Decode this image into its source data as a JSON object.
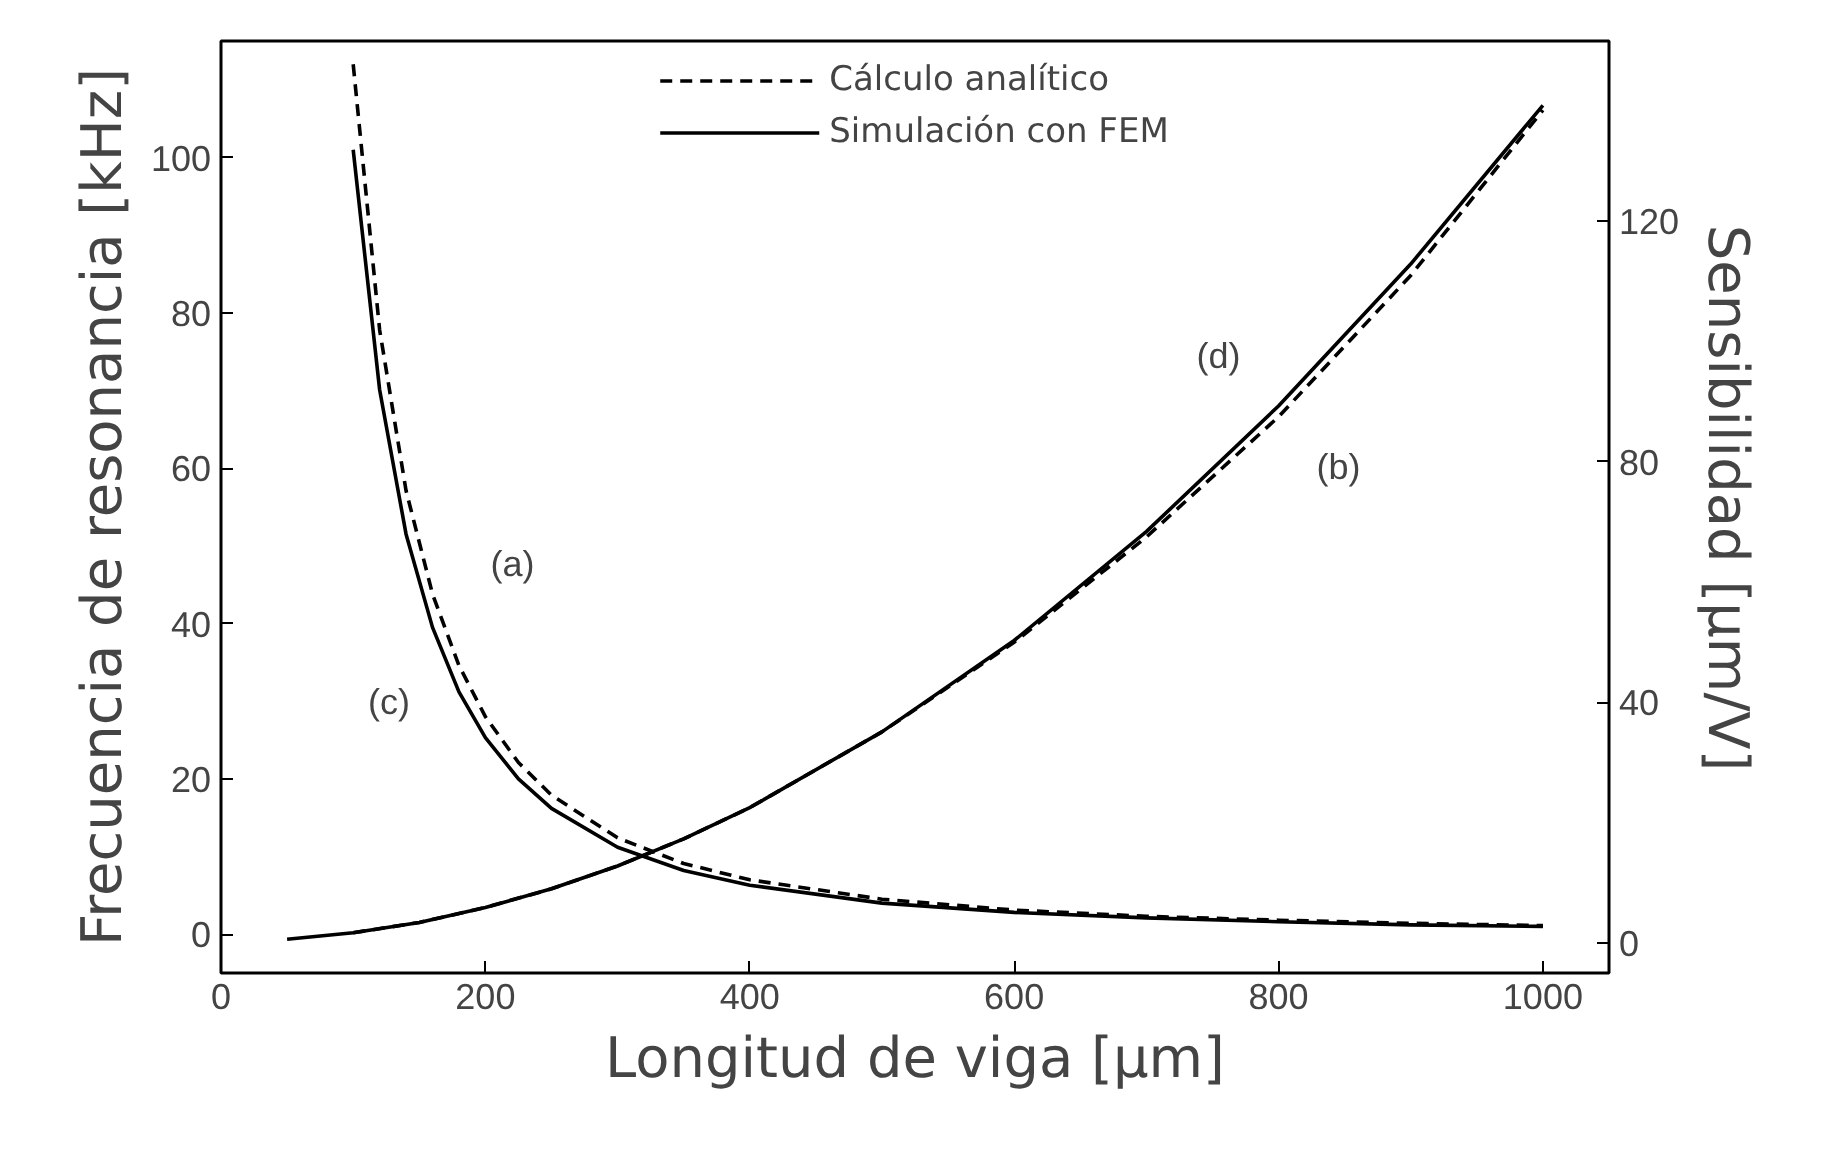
{
  "chart_data": {
    "type": "line",
    "xlabel": "Longitud de viga [μm]",
    "ylabel": "Frecuencia de resonancia [kHz]",
    "y2label": "Sensibilidad  [μm/V]",
    "xlim": [
      0,
      1050
    ],
    "xticks": [
      0,
      200,
      400,
      600,
      800,
      1000
    ],
    "ylim": [
      -5,
      115
    ],
    "yticks": [
      0,
      20,
      40,
      60,
      80,
      100
    ],
    "y2lim": [
      -5,
      150
    ],
    "y2ticks": [
      0,
      40,
      80,
      120
    ],
    "grid": false,
    "legend": "top",
    "series": [
      {
        "name": "Cálculo analítico",
        "color": "#000000",
        "line_style": "dashed",
        "x": [
          100,
          120,
          140,
          160,
          180,
          200,
          225,
          250,
          300,
          350,
          400,
          500,
          600,
          700,
          800,
          900,
          1000
        ],
        "values": [
          112,
          77.8,
          57.1,
          43.8,
          34.6,
          28.0,
          22.1,
          17.9,
          12.4,
          9.1,
          7.0,
          4.5,
          3.1,
          2.3,
          1.8,
          1.4,
          1.1
        ]
      },
      {
        "name": "Simulación con FEM",
        "color": "#000000",
        "line_style": "solid",
        "x": [
          100,
          120,
          140,
          160,
          180,
          200,
          225,
          250,
          300,
          350,
          400,
          500,
          600,
          700,
          800,
          900,
          1000
        ],
        "values": [
          101,
          70.1,
          51.5,
          39.5,
          31.2,
          25.3,
          20.0,
          16.2,
          11.2,
          8.2,
          6.3,
          4.0,
          2.8,
          2.1,
          1.6,
          1.2,
          1.0
        ]
      },
      {
        "color": "#000000",
        "line_style": "dashed",
        "axis": "y2",
        "x": [
          100,
          150,
          200,
          250,
          300,
          350,
          400,
          500,
          600,
          700,
          800,
          900,
          1000
        ],
        "values": [
          1.7,
          3.4,
          5.9,
          9.0,
          12.8,
          17.3,
          22.5,
          35.1,
          50.0,
          67.5,
          87.5,
          111.0,
          138.5
        ]
      },
      {
        "color": "#000000",
        "line_style": "solid",
        "axis": "y2",
        "x": [
          50,
          100,
          150,
          200,
          250,
          300,
          350,
          400,
          500,
          600,
          700,
          800,
          900,
          1000
        ],
        "values": [
          0.6,
          1.7,
          3.4,
          5.9,
          9.0,
          12.8,
          17.3,
          22.5,
          35.1,
          50.3,
          68.4,
          89.3,
          112.9,
          139.3
        ]
      }
    ],
    "annotations": [
      "(a)",
      "(c)",
      "(b)",
      "(d)"
    ]
  }
}
